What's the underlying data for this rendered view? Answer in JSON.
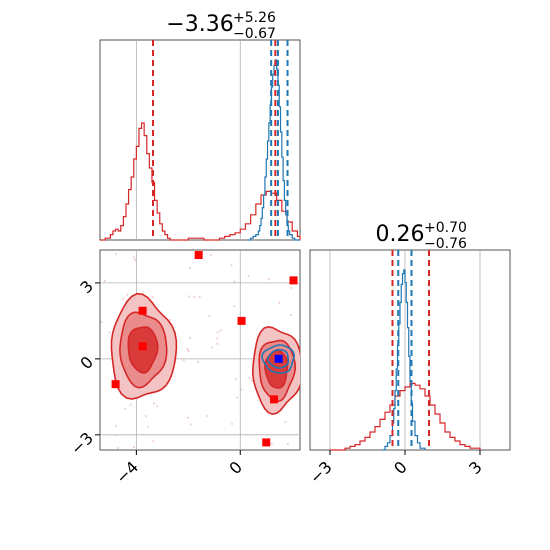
{
  "chart_data": [
    {
      "type": "histogram",
      "panel": "p1-marginal",
      "title": {
        "main": "−3.36",
        "plus": "+5.26",
        "minus": "−0.67"
      },
      "xlim": [
        -5.4,
        2.3
      ],
      "x_gridlines": [
        -4,
        0
      ],
      "series": [
        {
          "name": "",
          "color": "#d62728",
          "bins_x": [
            -5.4,
            -5.2,
            -5.0,
            -4.9,
            -4.8,
            -4.7,
            -4.6,
            -4.5,
            -4.4,
            -4.3,
            -4.2,
            -4.1,
            -4.0,
            -3.9,
            -3.8,
            -3.7,
            -3.6,
            -3.5,
            -3.4,
            -3.3,
            -3.2,
            -3.1,
            -3.0,
            -2.9,
            -2.8,
            -2.7,
            -2.6,
            -2.0,
            -1.7,
            -1.4,
            -1.0,
            -0.8,
            -0.6,
            -0.4,
            -0.2,
            0.0,
            0.2,
            0.4,
            0.6,
            0.8,
            1.0,
            1.2,
            1.4,
            1.6,
            1.8,
            2.0,
            2.2,
            2.3
          ],
          "density": [
            0,
            0.01,
            0.03,
            0.05,
            0.06,
            0.05,
            0.08,
            0.13,
            0.2,
            0.28,
            0.35,
            0.45,
            0.52,
            0.62,
            0.65,
            0.58,
            0.48,
            0.4,
            0.32,
            0.22,
            0.15,
            0.09,
            0.05,
            0.03,
            0.01,
            0,
            0,
            0.01,
            0.01,
            0,
            0,
            0.01,
            0.02,
            0.03,
            0.04,
            0.06,
            0.09,
            0.14,
            0.2,
            0.25,
            0.27,
            0.26,
            0.22,
            0.16,
            0.1,
            0.05,
            0.02,
            0
          ]
        },
        {
          "name": "",
          "color": "#1f77b4",
          "bins_x": [
            0.3,
            0.4,
            0.5,
            0.6,
            0.7,
            0.75,
            0.8,
            0.85,
            0.9,
            0.95,
            1.0,
            1.05,
            1.1,
            1.15,
            1.2,
            1.25,
            1.3,
            1.35,
            1.4,
            1.45,
            1.5,
            1.55,
            1.6,
            1.65,
            1.7,
            1.75,
            1.8,
            1.85,
            1.9,
            2.0,
            2.1,
            2.3
          ],
          "density": [
            0,
            0.01,
            0.02,
            0.03,
            0.05,
            0.08,
            0.12,
            0.18,
            0.25,
            0.35,
            0.45,
            0.55,
            0.65,
            0.75,
            0.85,
            0.92,
            0.97,
            1.0,
            0.95,
            0.86,
            0.74,
            0.6,
            0.46,
            0.33,
            0.22,
            0.14,
            0.08,
            0.05,
            0.03,
            0.01,
            0,
            0
          ]
        }
      ],
      "vlines": [
        {
          "x": -3.36,
          "color": "#d62728"
        },
        {
          "x": 1.19,
          "color": "#1f77b4"
        },
        {
          "x": 1.35,
          "color": "#d62728"
        },
        {
          "x": 1.45,
          "color": "#1f77b4"
        },
        {
          "x": 1.82,
          "color": "#1f77b4"
        }
      ]
    },
    {
      "type": "contour",
      "panel": "p1-p2-2d",
      "xlim": [
        -5.4,
        2.3
      ],
      "ylim": [
        -3.6,
        4.3
      ],
      "x_ticks": [
        -4,
        0
      ],
      "x_tick_labels": [
        "−4",
        "0"
      ],
      "y_ticks": [
        -3,
        0,
        3
      ],
      "y_tick_labels": [
        "−3",
        "0",
        "3"
      ],
      "red_markers": [
        {
          "x": -3.76,
          "y": 1.9
        },
        {
          "x": -3.76,
          "y": 0.5
        },
        {
          "x": -4.8,
          "y": -1.0
        },
        {
          "x": -1.6,
          "y": 4.1
        },
        {
          "x": 0.05,
          "y": 1.5
        },
        {
          "x": 2.05,
          "y": 3.1
        },
        {
          "x": 1.3,
          "y": -1.6
        },
        {
          "x": 1.0,
          "y": -3.3
        }
      ],
      "blue_markers": [
        {
          "x": 1.48,
          "y": 0.0
        }
      ],
      "red_contour_regions": [
        {
          "cx": -3.76,
          "cy": 0.4,
          "rx": 1.25,
          "ry": 2.0
        },
        {
          "cx": 1.4,
          "cy": -0.4,
          "rx": 0.95,
          "ry": 1.65
        }
      ],
      "blue_contour_regions": [
        {
          "cx": 1.48,
          "cy": 0.0,
          "rx": 0.6,
          "ry": 0.55
        }
      ]
    },
    {
      "type": "histogram",
      "panel": "p2-marginal",
      "title": {
        "main": "0.26",
        "plus": "+0.70",
        "minus": "−0.76"
      },
      "xlim": [
        -3.8,
        4.2
      ],
      "x_ticks": [
        -3,
        0,
        3
      ],
      "x_tick_labels": [
        "−3",
        "0",
        "3"
      ],
      "series": [
        {
          "name": "",
          "color": "#d62728",
          "bins_x": [
            -3.0,
            -2.4,
            -2.2,
            -2.0,
            -1.8,
            -1.6,
            -1.4,
            -1.2,
            -1.0,
            -0.8,
            -0.6,
            -0.4,
            -0.2,
            0.0,
            0.2,
            0.4,
            0.6,
            0.8,
            1.0,
            1.2,
            1.4,
            1.6,
            1.8,
            2.0,
            2.2,
            2.4,
            2.6,
            3.0
          ],
          "density": [
            0,
            0.01,
            0.02,
            0.03,
            0.05,
            0.07,
            0.1,
            0.13,
            0.17,
            0.21,
            0.25,
            0.3,
            0.33,
            0.35,
            0.37,
            0.36,
            0.34,
            0.3,
            0.25,
            0.2,
            0.15,
            0.1,
            0.07,
            0.05,
            0.03,
            0.02,
            0.01,
            0
          ]
        },
        {
          "name": "",
          "color": "#1f77b4",
          "bins_x": [
            -0.9,
            -0.8,
            -0.7,
            -0.6,
            -0.5,
            -0.45,
            -0.4,
            -0.35,
            -0.3,
            -0.25,
            -0.2,
            -0.15,
            -0.1,
            -0.05,
            0.0,
            0.05,
            0.1,
            0.15,
            0.2,
            0.25,
            0.3,
            0.4,
            0.5,
            0.6,
            0.8
          ],
          "density": [
            0,
            0.02,
            0.04,
            0.08,
            0.15,
            0.23,
            0.33,
            0.45,
            0.58,
            0.7,
            0.82,
            0.92,
            0.98,
            1.0,
            0.93,
            0.82,
            0.68,
            0.52,
            0.38,
            0.26,
            0.16,
            0.08,
            0.04,
            0.01,
            0
          ]
        }
      ],
      "vlines": [
        {
          "x": -0.5,
          "color": "#d62728"
        },
        {
          "x": -0.27,
          "color": "#1f77b4"
        },
        {
          "x": 0.26,
          "color": "#1f77b4"
        },
        {
          "x": 0.96,
          "color": "#d62728"
        }
      ]
    }
  ]
}
